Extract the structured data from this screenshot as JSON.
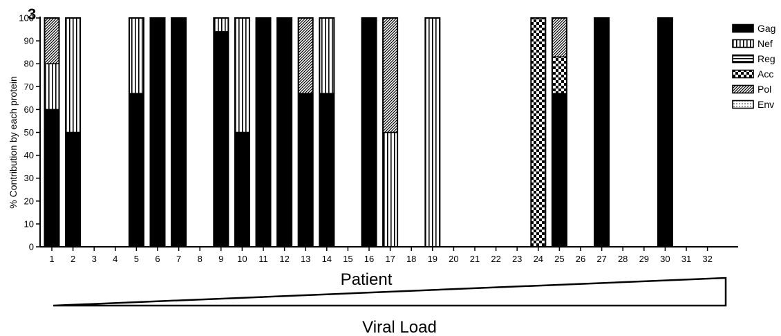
{
  "panel_label": "3",
  "colors": {
    "ink": "#000000",
    "paper": "#ffffff"
  },
  "chart_data": {
    "type": "bar",
    "stacked": true,
    "xlabel": "Patient",
    "ylabel": "% Contribution by each protein",
    "ylim": [
      0,
      100
    ],
    "yticks": [
      0,
      10,
      20,
      30,
      40,
      50,
      60,
      70,
      80,
      90,
      100
    ],
    "categories": [
      "1",
      "2",
      "3",
      "4",
      "5",
      "6",
      "7",
      "8",
      "9",
      "10",
      "11",
      "12",
      "13",
      "14",
      "15",
      "16",
      "17",
      "18",
      "19",
      "20",
      "21",
      "22",
      "23",
      "24",
      "25",
      "26",
      "27",
      "28",
      "29",
      "30",
      "31",
      "32"
    ],
    "legend_position": "right",
    "series": [
      {
        "name": "Gag",
        "pattern": "solid",
        "values": [
          60,
          50,
          0,
          0,
          67,
          100,
          100,
          0,
          94,
          50,
          100,
          100,
          67,
          67,
          0,
          100,
          0,
          0,
          0,
          0,
          0,
          0,
          0,
          0,
          67,
          0,
          100,
          0,
          0,
          100,
          0,
          0
        ]
      },
      {
        "name": "Nef",
        "pattern": "vertical-stripes",
        "values": [
          20,
          50,
          0,
          0,
          33,
          0,
          0,
          0,
          6,
          50,
          0,
          0,
          0,
          33,
          0,
          0,
          50,
          0,
          100,
          0,
          0,
          0,
          0,
          0,
          0,
          0,
          0,
          0,
          0,
          0,
          0,
          0
        ]
      },
      {
        "name": "Reg",
        "pattern": "horizontal-stripes",
        "values": [
          0,
          0,
          0,
          0,
          0,
          0,
          0,
          0,
          0,
          0,
          0,
          0,
          0,
          0,
          0,
          0,
          0,
          0,
          0,
          0,
          0,
          0,
          0,
          0,
          0,
          0,
          0,
          0,
          0,
          0,
          0,
          0
        ]
      },
      {
        "name": "Acc",
        "pattern": "checker",
        "values": [
          0,
          0,
          0,
          0,
          0,
          0,
          0,
          0,
          0,
          0,
          0,
          0,
          0,
          0,
          0,
          0,
          0,
          0,
          0,
          0,
          0,
          0,
          0,
          100,
          16,
          0,
          0,
          0,
          0,
          0,
          0,
          0
        ]
      },
      {
        "name": "Pol",
        "pattern": "diagonal-hatch",
        "values": [
          20,
          0,
          0,
          0,
          0,
          0,
          0,
          0,
          0,
          0,
          0,
          0,
          33,
          0,
          0,
          0,
          50,
          0,
          0,
          0,
          0,
          0,
          0,
          0,
          17,
          0,
          0,
          0,
          0,
          0,
          0,
          0
        ]
      },
      {
        "name": "Env",
        "pattern": "dotted",
        "values": [
          0,
          0,
          0,
          0,
          0,
          0,
          0,
          0,
          0,
          0,
          0,
          0,
          0,
          0,
          0,
          0,
          0,
          0,
          0,
          0,
          0,
          0,
          0,
          0,
          0,
          0,
          0,
          0,
          0,
          0,
          0,
          0
        ]
      }
    ],
    "annotation": {
      "text": "Viral Load",
      "shape": "increasing-wedge"
    }
  }
}
